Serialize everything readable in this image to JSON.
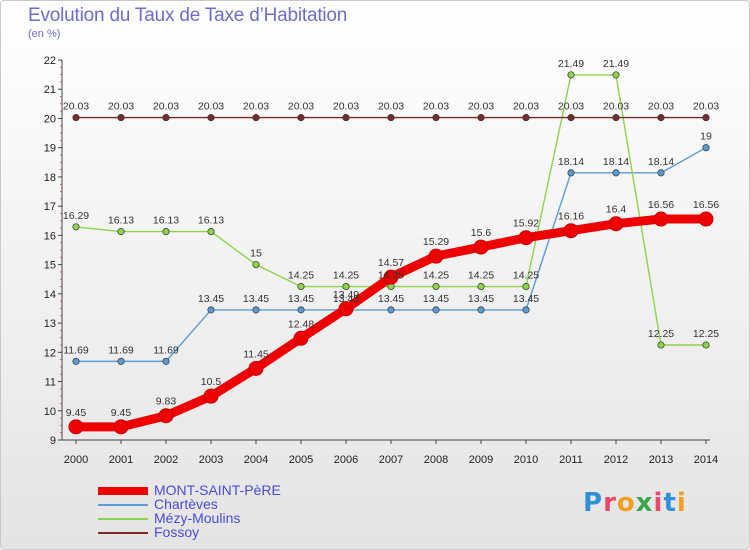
{
  "header": {
    "title": "Evolution du Taux de Taxe d’Habitation",
    "subtitle": "(en %)"
  },
  "brand": {
    "logo_letters": [
      {
        "ch": "P",
        "color": "#2f8fd8"
      },
      {
        "ch": "r",
        "color": "#e84a6a"
      },
      {
        "ch": "o",
        "color": "#f0a020"
      },
      {
        "ch": "x",
        "color": "#3aa84a"
      },
      {
        "ch": "i",
        "color": "#e84a6a"
      },
      {
        "ch": "t",
        "color": "#2f8fd8"
      },
      {
        "ch": "i",
        "color": "#f0a020"
      }
    ]
  },
  "chart_data": {
    "type": "line",
    "title": "Evolution du Taux de Taxe d’Habitation",
    "subtitle": "(en %)",
    "x": [
      2000,
      2001,
      2002,
      2003,
      2004,
      2005,
      2006,
      2007,
      2008,
      2009,
      2010,
      2011,
      2012,
      2013,
      2014
    ],
    "ylim": [
      9,
      22
    ],
    "yticks": [
      9,
      10,
      11,
      12,
      13,
      14,
      15,
      16,
      17,
      18,
      19,
      20,
      21,
      22
    ],
    "grid": false,
    "legend_position": "bottom-left",
    "series": [
      {
        "name": "MONT-SAINT-PèRE",
        "color": "#ee0000",
        "emphasis": true,
        "values": [
          9.45,
          9.45,
          9.83,
          10.5,
          11.45,
          12.48,
          13.49,
          14.57,
          15.29,
          15.6,
          15.92,
          16.16,
          16.4,
          16.56,
          16.56
        ],
        "labels": [
          "9.45",
          "9.45",
          "9.83",
          "10.5",
          "11.45",
          "12.48",
          "13.49",
          "14.57",
          "15.29",
          "15.6",
          "15.92",
          "16.16",
          "16.4",
          "16.56",
          "16.56"
        ]
      },
      {
        "name": "Chartèves",
        "color": "#5b9bd5",
        "emphasis": false,
        "values": [
          11.69,
          11.69,
          11.69,
          13.45,
          13.45,
          13.45,
          13.45,
          13.45,
          13.45,
          13.45,
          13.45,
          18.14,
          18.14,
          18.14,
          19
        ],
        "labels": [
          "11.69",
          "11.69",
          "11.69",
          "13.45",
          "13.45",
          "13.45",
          "13.45",
          "13.45",
          "13.45",
          "13.45",
          "13.45",
          "18.14",
          "18.14",
          "18.14",
          "19"
        ]
      },
      {
        "name": "Mézy-Moulins",
        "color": "#8cd44a",
        "emphasis": false,
        "values": [
          16.29,
          16.13,
          16.13,
          16.13,
          15,
          14.25,
          14.25,
          14.25,
          14.25,
          14.25,
          14.25,
          21.49,
          21.49,
          12.25,
          12.25
        ],
        "labels": [
          "16.29",
          "16.13",
          "16.13",
          "16.13",
          "15",
          "14.25",
          "14.25",
          "14.25",
          "14.25",
          "14.25",
          "14.25",
          "21.49",
          "21.49",
          "12.25",
          "12.25"
        ]
      },
      {
        "name": "Fossoy",
        "color": "#7a2a2a",
        "emphasis": false,
        "values": [
          20.03,
          20.03,
          20.03,
          20.03,
          20.03,
          20.03,
          20.03,
          20.03,
          20.03,
          20.03,
          20.03,
          20.03,
          20.03,
          20.03,
          20.03
        ],
        "labels": [
          "20.03",
          "20.03",
          "20.03",
          "20.03",
          "20.03",
          "20.03",
          "20.03",
          "20.03",
          "20.03",
          "20.03",
          "20.03",
          "20.03",
          "20.03",
          "20.03",
          "20.03"
        ]
      }
    ]
  }
}
